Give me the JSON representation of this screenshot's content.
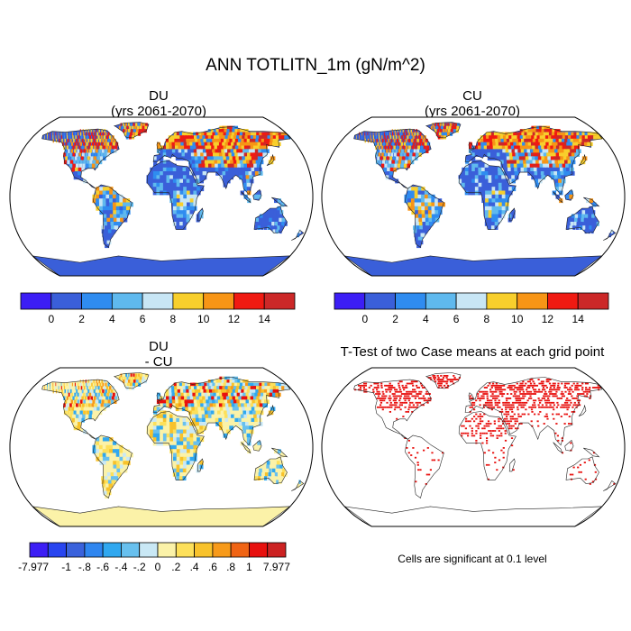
{
  "title": "ANN TOTLITN_1m (gN/m^2)",
  "panels": {
    "du": {
      "line1": "DU",
      "line2": "(yrs 2061-2070)"
    },
    "cu": {
      "line1": "CU",
      "line2": "(yrs 2061-2070)"
    },
    "diff": {
      "line1": "DU",
      "line2": "- CU"
    },
    "ttest": {
      "line1": "T-Test of two Case means at each grid point"
    }
  },
  "colorbar_top": {
    "labels": [
      "0",
      "2",
      "4",
      "6",
      "8",
      "10",
      "12",
      "14"
    ],
    "colors": [
      "#3c1ef5",
      "#3a5fd9",
      "#2f8cf0",
      "#5fb9ee",
      "#c8e6f5",
      "#f8cf2c",
      "#f79516",
      "#f01a12",
      "#cc2828"
    ]
  },
  "colorbar_diff": {
    "labels": [
      "-7.977",
      "-1",
      "-.8",
      "-.6",
      "-.4",
      "-.2",
      "0",
      ".2",
      ".4",
      ".6",
      ".8",
      "1",
      "7.977"
    ],
    "colors": [
      "#3c1ef5",
      "#2845f0",
      "#3a62dc",
      "#2f86f0",
      "#30a8f0",
      "#68c0ee",
      "#c9e8f5",
      "#fbf2a8",
      "#fde05a",
      "#f8c22b",
      "#f79a1a",
      "#f06414",
      "#e8100e",
      "#cc2222"
    ]
  },
  "note": "Cells are significant at 0.1 level",
  "colors": {
    "ocean": "#ffffff",
    "du_land": "#3a5fd9",
    "antarctica_diff": "#fbf2a8",
    "signif": "#e8100e"
  }
}
